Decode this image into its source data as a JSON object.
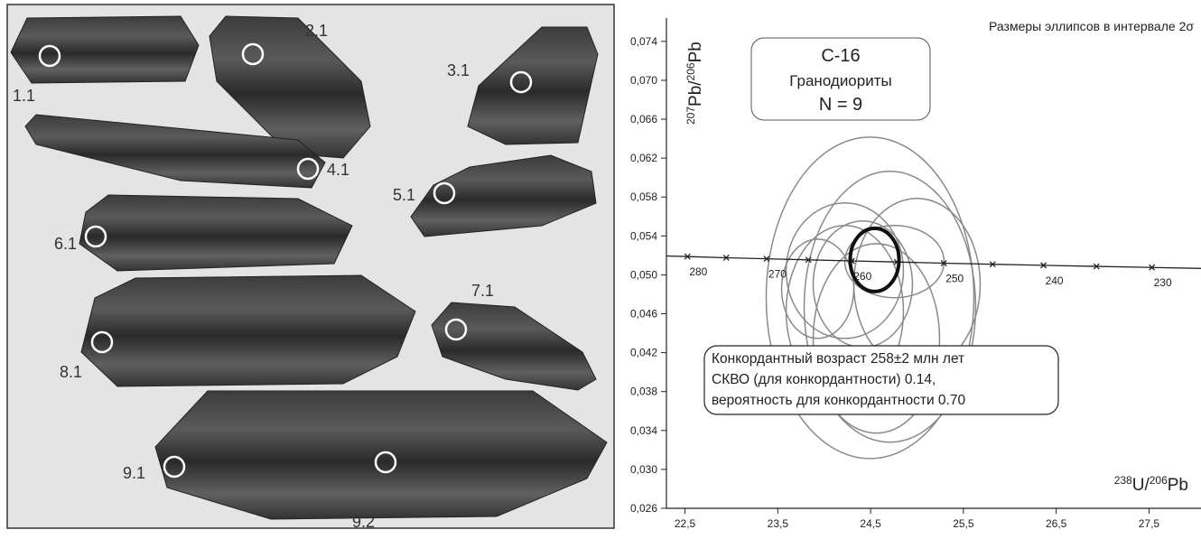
{
  "image_panel": {
    "spot_labels": [
      "1.1",
      "2.1",
      "3.1",
      "4.1",
      "5.1",
      "6.1",
      "7.1",
      "8.1",
      "9.1",
      "9.2"
    ]
  },
  "chart_data": {
    "type": "concordia",
    "subtitle": "Размеры эллипсов в интервале 2σ",
    "sample_box": {
      "name": "С-16",
      "rock": "Гранодиориты",
      "n": "N = 9"
    },
    "ylabel": {
      "mass1": "207",
      "el1": "Pb/",
      "mass2": "206",
      "el2": "Pb"
    },
    "xlabel": {
      "mass1": "238",
      "el1": "U/",
      "mass2": "206",
      "el2": "Pb"
    },
    "annotation": [
      "Конкордантный возраст 258±2 млн лет",
      "СКВО (для конкордантности) 0.14,",
      "вероятность для конкордантности 0.70"
    ],
    "xlim": [
      22.3,
      28.06
    ],
    "ylim": [
      0.026,
      0.0764
    ],
    "xticks": [
      {
        "value": 22.5,
        "label": "22,5"
      },
      {
        "value": 23.5,
        "label": "23,5"
      },
      {
        "value": 24.5,
        "label": "24,5"
      },
      {
        "value": 25.5,
        "label": "25,5"
      },
      {
        "value": 26.5,
        "label": "26,5"
      },
      {
        "value": 27.5,
        "label": "27,5"
      }
    ],
    "yticks": [
      {
        "value": 0.026,
        "label": "0,026"
      },
      {
        "value": 0.03,
        "label": "0,030"
      },
      {
        "value": 0.034,
        "label": "0,034"
      },
      {
        "value": 0.038,
        "label": "0,038"
      },
      {
        "value": 0.042,
        "label": "0,042"
      },
      {
        "value": 0.046,
        "label": "0,046"
      },
      {
        "value": 0.05,
        "label": "0,050"
      },
      {
        "value": 0.054,
        "label": "0,054"
      },
      {
        "value": 0.058,
        "label": "0,058"
      },
      {
        "value": 0.062,
        "label": "0,062"
      },
      {
        "value": 0.066,
        "label": "0,066"
      },
      {
        "value": 0.07,
        "label": "0,070"
      },
      {
        "value": 0.074,
        "label": "0,074"
      }
    ],
    "concordia": {
      "color": "#222",
      "ages": [
        280,
        null,
        270,
        null,
        260,
        null,
        250,
        null,
        240,
        null,
        230
      ],
      "x": [
        22.527,
        22.945,
        23.379,
        23.83,
        24.297,
        24.784,
        25.289,
        25.815,
        26.363,
        26.934,
        27.531
      ],
      "y": [
        0.05188,
        0.05176,
        0.05165,
        0.05154,
        0.05143,
        0.05132,
        0.0512,
        0.05109,
        0.05098,
        0.05087,
        0.05076
      ]
    },
    "ellipses": {
      "color": "#8a8a8a",
      "x": [
        24.494,
        24.708,
        24.222,
        24.757,
        24.222,
        25.0,
        23.93,
        24.416,
        24.562
      ],
      "y": [
        0.04764,
        0.04672,
        0.05043,
        0.05136,
        0.04625,
        0.04904,
        0.04857,
        0.04904,
        0.04347
      ],
      "x_err": [
        1.119,
        0.924,
        0.632,
        0.535,
        0.632,
        0.681,
        0.389,
        0.535,
        0.681
      ],
      "y_err": [
        0.01652,
        0.01392,
        0.00696,
        0.00371,
        0.00882,
        0.00882,
        0.0051,
        0.0065,
        0.00974
      ]
    },
    "concordant_age": {
      "color": "#111",
      "x": 24.543,
      "y": 0.05154,
      "x_err": 0.263,
      "y_err": 0.00325
    }
  }
}
